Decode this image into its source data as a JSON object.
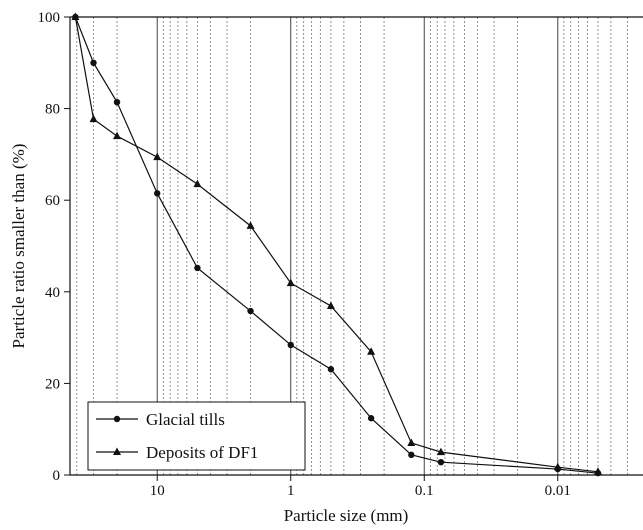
{
  "chart_data": {
    "type": "line",
    "x_label": "Particle size (mm)",
    "y_label": "Particle ratio smaller than (%)",
    "x": [
      41,
      30,
      20,
      10,
      5,
      2,
      1,
      0.5,
      0.25,
      0.125,
      0.075,
      0.01,
      0.005
    ],
    "series": [
      {
        "name": "Glacial tills",
        "color": "#111111",
        "marker": "circle",
        "values": [
          100,
          90,
          81.4,
          61.5,
          45.2,
          35.8,
          28.4,
          23.1,
          12.4,
          4.4,
          2.8,
          1.3,
          0.4
        ]
      },
      {
        "name": "Deposits of DF1",
        "color": "#111111",
        "marker": "triangle",
        "values": [
          100,
          77.7,
          74,
          69.4,
          63.5,
          54.4,
          41.9,
          36.9,
          26.9,
          7,
          5,
          1.7,
          0.7
        ]
      }
    ],
    "x_log": true,
    "xlim": [
      45,
      0.0023
    ],
    "xticks": [
      10,
      1,
      0.1,
      0.01
    ],
    "ylim": [
      0,
      100
    ],
    "yticks": [
      0,
      20,
      40,
      60,
      80,
      100
    ],
    "grid": true,
    "legend": "lower-left"
  }
}
